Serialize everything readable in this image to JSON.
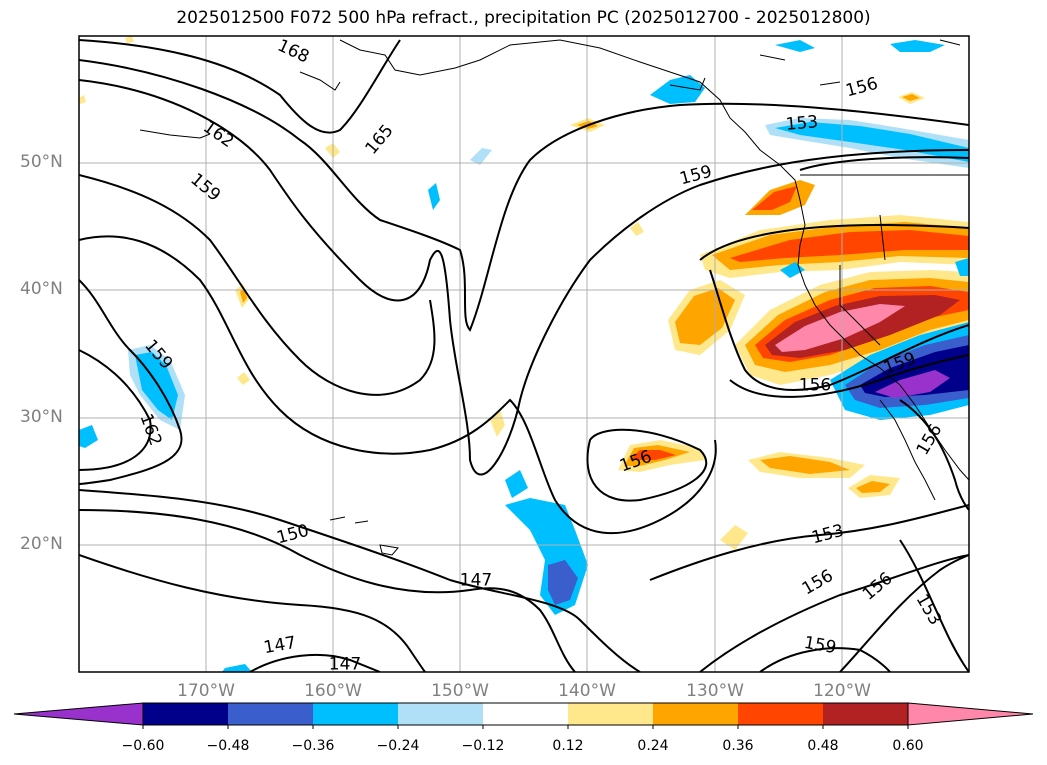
{
  "title": "2025012500 F072 500 hPa refract., precipitation PC (2025012700 - 2025012800)",
  "map": {
    "lon_range": [
      -180,
      -110
    ],
    "lat_range": [
      10,
      60
    ],
    "lat_labels": [
      {
        "lat": 50,
        "text": "50°N"
      },
      {
        "lat": 40,
        "text": "40°N"
      },
      {
        "lat": 30,
        "text": "30°N"
      },
      {
        "lat": 20,
        "text": "20°N"
      }
    ],
    "lon_labels": [
      {
        "lon": -170,
        "text": "170°W"
      },
      {
        "lon": -160,
        "text": "160°W"
      },
      {
        "lon": -150,
        "text": "150°W"
      },
      {
        "lon": -140,
        "text": "140°W"
      },
      {
        "lon": -130,
        "text": "130°W"
      },
      {
        "lon": -120,
        "text": "120°W"
      }
    ],
    "contour_labels": [
      "168",
      "165",
      "162",
      "159",
      "159",
      "162",
      "159",
      "153",
      "156",
      "159",
      "156",
      "156",
      "150",
      "147",
      "147",
      "147",
      "153",
      "156",
      "156",
      "153",
      "159",
      "156"
    ],
    "colors": {
      "frame": "#000000",
      "grid": "#b0b0b0",
      "contour": "#000000"
    }
  },
  "colorbar": {
    "ticks": [
      "−0.60",
      "−0.48",
      "−0.36",
      "−0.24",
      "−0.12",
      "0.12",
      "0.24",
      "0.36",
      "0.48",
      "0.60"
    ],
    "colors": [
      "#9932cc",
      "#00008b",
      "#3a5fcd",
      "#00bfff",
      "#b0e0f8",
      "#ffffff",
      "#ffe88c",
      "#ffa500",
      "#ff4500",
      "#b22222",
      "#ff88aa"
    ]
  }
}
